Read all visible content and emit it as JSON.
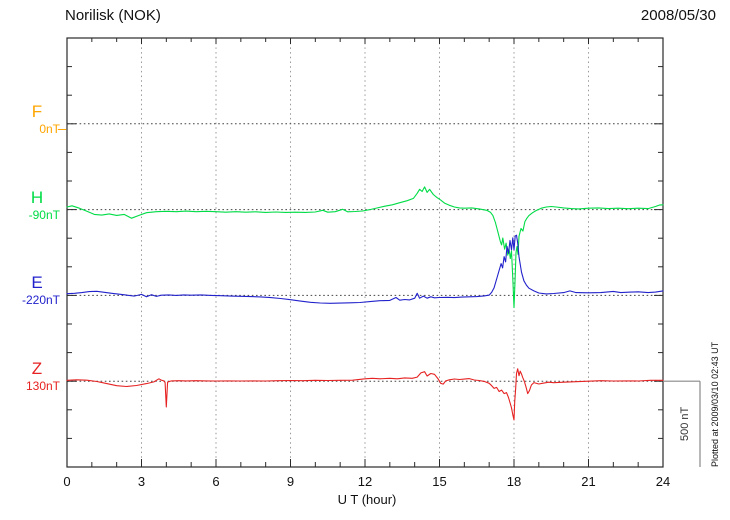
{
  "header": {
    "title": "Norilisk (NOK)",
    "date": "2008/05/30"
  },
  "x_axis": {
    "label": "U T (hour)",
    "tick_hours": [
      0,
      3,
      6,
      9,
      12,
      15,
      18,
      21,
      24
    ]
  },
  "scale_bar": {
    "label": "500 nT",
    "nT": 500
  },
  "footer_note": "Plotted at 2009/03/10 02:43 UT",
  "chart_data": {
    "type": "line",
    "title": "Norilisk (NOK) magnetogram",
    "date": "2008/05/30",
    "xlabel": "U T (hour)",
    "x_range": [
      0,
      24
    ],
    "x_ticks": [
      0,
      3,
      6,
      9,
      12,
      15,
      18,
      21,
      24
    ],
    "y_scale_bar_nT": 500,
    "grid": {
      "vertical_dotted_hours": [
        3,
        6,
        9,
        12,
        15,
        18,
        21
      ],
      "horizontal_dotted": "one dotted reference line per component"
    },
    "series": [
      {
        "name": "F",
        "color": "#FFA500",
        "baseline_label": "0nT",
        "note": "trace missing for the day; only initial level dash at left margin",
        "points": [
          [
            -0.35,
            -33
          ],
          [
            -0.05,
            -33
          ]
        ]
      },
      {
        "name": "H",
        "color": "#00DC46",
        "baseline_label": "-90nT",
        "points": [
          [
            0,
            15
          ],
          [
            0.2,
            22
          ],
          [
            0.5,
            8
          ],
          [
            0.8,
            -10
          ],
          [
            1.1,
            -28
          ],
          [
            1.4,
            -32
          ],
          [
            1.7,
            -25
          ],
          [
            2,
            -34
          ],
          [
            2.3,
            -28
          ],
          [
            2.6,
            -50
          ],
          [
            2.9,
            -34
          ],
          [
            3.2,
            -18
          ],
          [
            3.6,
            -12
          ],
          [
            4,
            -10
          ],
          [
            4.4,
            -12
          ],
          [
            4.8,
            -9
          ],
          [
            5.2,
            -12
          ],
          [
            5.6,
            -10
          ],
          [
            6,
            -12
          ],
          [
            6.4,
            -15
          ],
          [
            6.8,
            -12
          ],
          [
            7.2,
            -15
          ],
          [
            7.6,
            -13
          ],
          [
            8,
            -16
          ],
          [
            8.4,
            -14
          ],
          [
            8.8,
            -16
          ],
          [
            9.2,
            -15
          ],
          [
            9.6,
            -16
          ],
          [
            10,
            -14
          ],
          [
            10.3,
            -4
          ],
          [
            10.5,
            -15
          ],
          [
            10.8,
            -12
          ],
          [
            11.1,
            2
          ],
          [
            11.3,
            -13
          ],
          [
            11.6,
            -11
          ],
          [
            11.9,
            -8
          ],
          [
            12.2,
            0
          ],
          [
            12.5,
            10
          ],
          [
            12.8,
            20
          ],
          [
            13.1,
            28
          ],
          [
            13.4,
            40
          ],
          [
            13.7,
            52
          ],
          [
            13.95,
            65
          ],
          [
            14.1,
            95
          ],
          [
            14.2,
            118
          ],
          [
            14.3,
            105
          ],
          [
            14.4,
            132
          ],
          [
            14.5,
            100
          ],
          [
            14.6,
            118
          ],
          [
            14.75,
            88
          ],
          [
            14.9,
            70
          ],
          [
            15.05,
            55
          ],
          [
            15.2,
            38
          ],
          [
            15.4,
            25
          ],
          [
            15.6,
            15
          ],
          [
            15.8,
            10
          ],
          [
            16,
            8
          ],
          [
            16.3,
            10
          ],
          [
            16.6,
            4
          ],
          [
            16.9,
            -4
          ],
          [
            17.05,
            -15
          ],
          [
            17.15,
            -35
          ],
          [
            17.25,
            -75
          ],
          [
            17.35,
            -130
          ],
          [
            17.45,
            -185
          ],
          [
            17.5,
            -205
          ],
          [
            17.55,
            -165
          ],
          [
            17.62,
            -230
          ],
          [
            17.68,
            -195
          ],
          [
            17.75,
            -265
          ],
          [
            17.8,
            -225
          ],
          [
            17.85,
            -285
          ],
          [
            17.9,
            -240
          ],
          [
            17.95,
            -400
          ],
          [
            18,
            -570
          ],
          [
            18.04,
            -420
          ],
          [
            18.08,
            -250
          ],
          [
            18.12,
            -215
          ],
          [
            18.16,
            -260
          ],
          [
            18.2,
            -155
          ],
          [
            18.28,
            -110
          ],
          [
            18.36,
            -125
          ],
          [
            18.44,
            -70
          ],
          [
            18.52,
            -50
          ],
          [
            18.6,
            -35
          ],
          [
            18.75,
            -18
          ],
          [
            18.9,
            -5
          ],
          [
            19.1,
            8
          ],
          [
            19.3,
            15
          ],
          [
            19.5,
            18
          ],
          [
            19.7,
            15
          ],
          [
            20,
            10
          ],
          [
            20.3,
            6
          ],
          [
            20.6,
            4
          ],
          [
            21,
            8
          ],
          [
            21.4,
            10
          ],
          [
            21.8,
            6
          ],
          [
            22.2,
            8
          ],
          [
            22.6,
            5
          ],
          [
            23,
            8
          ],
          [
            23.4,
            6
          ],
          [
            23.7,
            18
          ],
          [
            23.85,
            26
          ],
          [
            24,
            28
          ]
        ]
      },
      {
        "name": "E",
        "color": "#2222CC",
        "baseline_label": "-220nT",
        "points": [
          [
            0,
            10
          ],
          [
            0.3,
            12
          ],
          [
            0.6,
            16
          ],
          [
            0.9,
            22
          ],
          [
            1.2,
            24
          ],
          [
            1.5,
            18
          ],
          [
            1.8,
            12
          ],
          [
            2.1,
            7
          ],
          [
            2.4,
            2
          ],
          [
            2.7,
            -4
          ],
          [
            3,
            6
          ],
          [
            3.2,
            -8
          ],
          [
            3.4,
            4
          ],
          [
            3.6,
            -6
          ],
          [
            3.8,
            1
          ],
          [
            4.1,
            3
          ],
          [
            4.4,
            0
          ],
          [
            4.7,
            3
          ],
          [
            5,
            1
          ],
          [
            5.4,
            3
          ],
          [
            5.8,
            0
          ],
          [
            6.2,
            -2
          ],
          [
            6.6,
            -4
          ],
          [
            7,
            -5
          ],
          [
            7.4,
            -7
          ],
          [
            7.8,
            -9
          ],
          [
            8.2,
            -13
          ],
          [
            8.6,
            -18
          ],
          [
            9,
            -25
          ],
          [
            9.4,
            -33
          ],
          [
            9.8,
            -40
          ],
          [
            10.2,
            -44
          ],
          [
            10.6,
            -46
          ],
          [
            11,
            -45
          ],
          [
            11.4,
            -43
          ],
          [
            11.8,
            -41
          ],
          [
            12.2,
            -36
          ],
          [
            12.6,
            -31
          ],
          [
            13,
            -29
          ],
          [
            13.25,
            -12
          ],
          [
            13.4,
            -28
          ],
          [
            13.6,
            -24
          ],
          [
            13.8,
            -26
          ],
          [
            14,
            -16
          ],
          [
            14.1,
            12
          ],
          [
            14.2,
            -16
          ],
          [
            14.35,
            -4
          ],
          [
            14.5,
            -16
          ],
          [
            14.65,
            -8
          ],
          [
            14.8,
            -14
          ],
          [
            15,
            -12
          ],
          [
            15.3,
            -11
          ],
          [
            15.6,
            -13
          ],
          [
            15.9,
            -10
          ],
          [
            16.2,
            -8
          ],
          [
            16.5,
            -7
          ],
          [
            16.8,
            -3
          ],
          [
            17,
            2
          ],
          [
            17.1,
            18
          ],
          [
            17.2,
            45
          ],
          [
            17.3,
            95
          ],
          [
            17.4,
            145
          ],
          [
            17.48,
            185
          ],
          [
            17.54,
            160
          ],
          [
            17.6,
            225
          ],
          [
            17.66,
            195
          ],
          [
            17.72,
            285
          ],
          [
            17.78,
            245
          ],
          [
            17.84,
            320
          ],
          [
            17.9,
            265
          ],
          [
            17.95,
            335
          ],
          [
            18,
            265
          ],
          [
            18.05,
            345
          ],
          [
            18.1,
            350
          ],
          [
            18.15,
            305
          ],
          [
            18.2,
            225
          ],
          [
            18.3,
            135
          ],
          [
            18.4,
            85
          ],
          [
            18.5,
            60
          ],
          [
            18.6,
            42
          ],
          [
            18.8,
            26
          ],
          [
            19,
            14
          ],
          [
            19.3,
            9
          ],
          [
            19.6,
            11
          ],
          [
            20,
            16
          ],
          [
            20.25,
            26
          ],
          [
            20.5,
            16
          ],
          [
            21,
            15
          ],
          [
            21.5,
            16
          ],
          [
            22,
            23
          ],
          [
            22.3,
            16
          ],
          [
            22.7,
            19
          ],
          [
            23,
            21
          ],
          [
            23.4,
            16
          ],
          [
            23.7,
            19
          ],
          [
            24,
            26
          ]
        ]
      },
      {
        "name": "Z",
        "color": "#E62222",
        "baseline_label": "130nT",
        "points": [
          [
            0,
            5
          ],
          [
            0.4,
            8
          ],
          [
            0.8,
            6
          ],
          [
            1.2,
            -2
          ],
          [
            1.6,
            -14
          ],
          [
            2,
            -26
          ],
          [
            2.4,
            -31
          ],
          [
            2.8,
            -25
          ],
          [
            3.2,
            -14
          ],
          [
            3.5,
            -4
          ],
          [
            3.7,
            14
          ],
          [
            3.8,
            6
          ],
          [
            3.9,
            2
          ],
          [
            3.95,
            -8
          ],
          [
            4,
            -150
          ],
          [
            4.05,
            -5
          ],
          [
            4.2,
            2
          ],
          [
            4.5,
            3
          ],
          [
            4.8,
            2
          ],
          [
            5.2,
            3
          ],
          [
            5.6,
            2
          ],
          [
            6,
            1
          ],
          [
            6.5,
            2
          ],
          [
            7,
            1
          ],
          [
            7.5,
            2
          ],
          [
            8,
            1
          ],
          [
            8.5,
            3
          ],
          [
            9,
            4
          ],
          [
            9.5,
            3
          ],
          [
            10,
            5
          ],
          [
            10.5,
            4
          ],
          [
            11,
            5
          ],
          [
            11.5,
            6
          ],
          [
            12,
            14
          ],
          [
            12.3,
            17
          ],
          [
            12.6,
            14
          ],
          [
            13,
            17
          ],
          [
            13.3,
            14
          ],
          [
            13.6,
            19
          ],
          [
            13.9,
            17
          ],
          [
            14.1,
            24
          ],
          [
            14.25,
            48
          ],
          [
            14.4,
            55
          ],
          [
            14.5,
            30
          ],
          [
            14.65,
            45
          ],
          [
            14.8,
            40
          ],
          [
            14.95,
            12
          ],
          [
            15.05,
            -12
          ],
          [
            15.15,
            -17
          ],
          [
            15.25,
            2
          ],
          [
            15.4,
            8
          ],
          [
            15.6,
            13
          ],
          [
            15.8,
            10
          ],
          [
            16,
            12
          ],
          [
            16.2,
            15
          ],
          [
            16.4,
            7
          ],
          [
            16.6,
            4
          ],
          [
            16.8,
            -1
          ],
          [
            17,
            -12
          ],
          [
            17.1,
            -26
          ],
          [
            17.2,
            -42
          ],
          [
            17.3,
            -36
          ],
          [
            17.4,
            -60
          ],
          [
            17.5,
            -52
          ],
          [
            17.6,
            -72
          ],
          [
            17.7,
            -66
          ],
          [
            17.78,
            -95
          ],
          [
            17.85,
            -130
          ],
          [
            17.9,
            -155
          ],
          [
            17.95,
            -195
          ],
          [
            18,
            -225
          ],
          [
            18.03,
            -120
          ],
          [
            18.07,
            -40
          ],
          [
            18.1,
            45
          ],
          [
            18.15,
            72
          ],
          [
            18.2,
            32
          ],
          [
            18.25,
            58
          ],
          [
            18.3,
            42
          ],
          [
            18.35,
            22
          ],
          [
            18.42,
            -2
          ],
          [
            18.5,
            -42
          ],
          [
            18.55,
            -72
          ],
          [
            18.62,
            -55
          ],
          [
            18.7,
            -22
          ],
          [
            18.8,
            -8
          ],
          [
            19,
            -16
          ],
          [
            19.2,
            -11
          ],
          [
            19.4,
            -6
          ],
          [
            19.6,
            -9
          ],
          [
            20,
            -6
          ],
          [
            20.5,
            -3
          ],
          [
            21,
            0
          ],
          [
            21.5,
            3
          ],
          [
            22,
            1
          ],
          [
            22.5,
            2
          ],
          [
            23,
            1
          ],
          [
            23.5,
            5
          ],
          [
            24,
            5
          ]
        ]
      }
    ]
  }
}
